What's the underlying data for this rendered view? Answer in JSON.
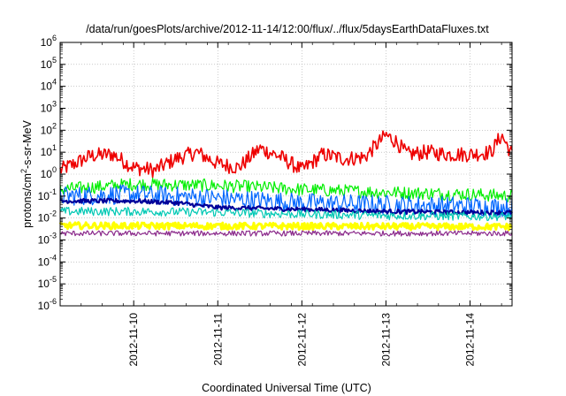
{
  "chart_data": {
    "type": "line",
    "title": "/data/run/goesPlots/archive/2012-11-14/12:00/flux/../flux/5daysEarthDataFluxes.txt",
    "xlabel": "Coordinated Universal Time (UTC)",
    "ylabel": {
      "pre": "protons/cm",
      "sup": "2",
      "post": "-s-sr-MeV"
    },
    "yscale": "log",
    "ylim": [
      1e-06,
      1000000.0
    ],
    "xlim": [
      "2012-11-09T03:00",
      "2012-11-14T12:00"
    ],
    "grid": true,
    "legend": "none",
    "y_ticks": [
      {
        "value": 1e-06,
        "base": "10",
        "exp": "-6"
      },
      {
        "value": 1e-05,
        "base": "10",
        "exp": "-5"
      },
      {
        "value": 0.0001,
        "base": "10",
        "exp": "-4"
      },
      {
        "value": 0.001,
        "base": "10",
        "exp": "-3"
      },
      {
        "value": 0.01,
        "base": "10",
        "exp": "-2"
      },
      {
        "value": 0.1,
        "base": "10",
        "exp": "-1"
      },
      {
        "value": 1.0,
        "base": "10",
        "exp": "0"
      },
      {
        "value": 10.0,
        "base": "10",
        "exp": "1"
      },
      {
        "value": 100.0,
        "base": "10",
        "exp": "2"
      },
      {
        "value": 1000.0,
        "base": "10",
        "exp": "3"
      },
      {
        "value": 10000.0,
        "base": "10",
        "exp": "4"
      },
      {
        "value": 100000.0,
        "base": "10",
        "exp": "5"
      },
      {
        "value": 1000000.0,
        "base": "10",
        "exp": "6"
      }
    ],
    "x_ticks": [
      {
        "value": "2012-11-10",
        "label": "2012-11-10"
      },
      {
        "value": "2012-11-11",
        "label": "2012-11-11"
      },
      {
        "value": "2012-11-12",
        "label": "2012-11-12"
      },
      {
        "value": "2012-11-13",
        "label": "2012-11-13"
      },
      {
        "value": "2012-11-14",
        "label": "2012-11-14"
      }
    ],
    "series": [
      {
        "color": "#ee0000",
        "noise": 0.35,
        "lw": 1.6,
        "x": [
          "2012-11-09T03:00",
          "2012-11-09T12:00",
          "2012-11-09T18:00",
          "2012-11-10T00:00",
          "2012-11-10T06:00",
          "2012-11-10T12:00",
          "2012-11-10T18:00",
          "2012-11-11T00:00",
          "2012-11-11T06:00",
          "2012-11-11T12:00",
          "2012-11-11T18:00",
          "2012-11-12T00:00",
          "2012-11-12T06:00",
          "2012-11-12T12:00",
          "2012-11-12T18:00",
          "2012-11-13T00:00",
          "2012-11-13T03:00",
          "2012-11-13T06:00",
          "2012-11-13T12:00",
          "2012-11-13T18:00",
          "2012-11-14T00:00",
          "2012-11-14T06:00",
          "2012-11-14T09:00",
          "2012-11-14T12:00"
        ],
        "y": [
          1.5,
          7,
          8,
          2,
          1.5,
          5,
          10,
          3,
          2,
          15,
          6,
          1.5,
          8,
          5,
          6,
          60,
          30,
          8,
          10,
          8,
          8,
          10,
          60,
          8
        ]
      },
      {
        "color": "#00ee00",
        "noise": 0.3,
        "lw": 1.2,
        "x": [
          "2012-11-09T03:00",
          "2012-11-10T00:00",
          "2012-11-11T00:00",
          "2012-11-11T12:00",
          "2012-11-12T00:00",
          "2012-11-13T00:00",
          "2012-11-14T00:00",
          "2012-11-14T12:00"
        ],
        "y": [
          0.2,
          0.35,
          0.3,
          0.25,
          0.2,
          0.15,
          0.12,
          0.1
        ]
      },
      {
        "color": "#0066ff",
        "noise": 0.45,
        "lw": 1.2,
        "x": [
          "2012-11-09T03:00",
          "2012-11-10T00:00",
          "2012-11-11T00:00",
          "2012-11-12T00:00",
          "2012-11-13T00:00",
          "2012-11-14T00:00",
          "2012-11-14T12:00"
        ],
        "y": [
          0.1,
          0.12,
          0.08,
          0.05,
          0.04,
          0.035,
          0.03
        ]
      },
      {
        "color": "#000099",
        "noise": 0.1,
        "lw": 2.2,
        "x": [
          "2012-11-09T03:00",
          "2012-11-10T00:00",
          "2012-11-10T12:00",
          "2012-11-11T00:00",
          "2012-11-12T00:00",
          "2012-11-13T00:00",
          "2012-11-14T00:00",
          "2012-11-14T12:00"
        ],
        "y": [
          0.06,
          0.06,
          0.05,
          0.03,
          0.025,
          0.02,
          0.018,
          0.018
        ]
      },
      {
        "color": "#00c8b4",
        "noise": 0.2,
        "lw": 1.2,
        "x": [
          "2012-11-09T03:00",
          "2012-11-10T00:00",
          "2012-11-11T00:00",
          "2012-11-12T00:00",
          "2012-11-13T00:00",
          "2012-11-14T00:00",
          "2012-11-14T12:00"
        ],
        "y": [
          0.02,
          0.02,
          0.018,
          0.015,
          0.013,
          0.012,
          0.012
        ]
      },
      {
        "color": "#ffff00",
        "noise": 0.15,
        "lw": 3.0,
        "x": [
          "2012-11-09T03:00",
          "2012-11-14T12:00"
        ],
        "y": [
          0.0045,
          0.004
        ]
      },
      {
        "color": "#8b2a8b",
        "noise": 0.12,
        "lw": 1.2,
        "x": [
          "2012-11-09T03:00",
          "2012-11-14T12:00"
        ],
        "y": [
          0.002,
          0.002
        ]
      }
    ]
  }
}
